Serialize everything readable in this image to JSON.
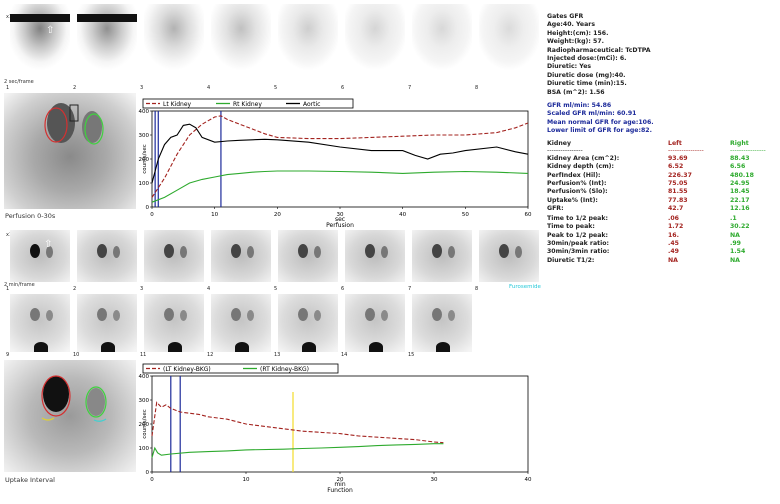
{
  "top_strip": {
    "scale_label": "x1.50",
    "frame_label": "2 sec/frame",
    "frames": [
      "1",
      "2",
      "3",
      "4",
      "5",
      "6",
      "7",
      "8"
    ]
  },
  "patient_info": [
    "Gates GFR",
    "Age:40. Years",
    "Height:(cm): 156.",
    "Weight:(kg): 57.",
    "Radiopharmaceutical: TcDTPA",
    "Injected dose:(mCi): 6.",
    "Diuretic: Yes",
    "Diuretic dose (mg):40.",
    "Diuretic time (min):15.",
    "BSA (m^2): 1.56"
  ],
  "gfr_summary": [
    "GFR ml/min: 54.86",
    "Scaled GFR ml/min: 60.91",
    "Mean normal GFR for age:106.",
    "Lower limit of GFR for age:82."
  ],
  "perfusion_panel": {
    "caption": "Perfusion 0-30s"
  },
  "mid_strip": {
    "scale_label": "x1.50",
    "frame_label": "2 min/frame",
    "frames_row1": [
      "1",
      "2",
      "3",
      "4",
      "5",
      "6",
      "7",
      "8"
    ],
    "frames_row2": [
      "9",
      "10",
      "11",
      "12",
      "13",
      "14",
      "15"
    ],
    "tag": "Furosemide"
  },
  "uptake_panel": {
    "caption": "Uptake Interval"
  },
  "kidney_table": {
    "header": {
      "label": "Kidney",
      "left": "Left",
      "right": "Right"
    },
    "dashes": "----------------",
    "rows": [
      {
        "label": "Kidney Area (cm^2):",
        "left": "93.69",
        "right": "88.43"
      },
      {
        "label": "Kidney depth (cm):",
        "left": "6.52",
        "right": "6.56"
      },
      {
        "label": "PerfIndex (Hil):",
        "left": "226.37",
        "right": "480.18"
      },
      {
        "label": "Perfusion% (Int):",
        "left": "75.05",
        "right": "24.95"
      },
      {
        "label": "Perfusion% (Slo):",
        "left": "81.55",
        "right": "18.45"
      },
      {
        "label": "Uptake% (Int):",
        "left": "77.83",
        "right": "22.17"
      },
      {
        "label": "GFR:",
        "left": "42.7",
        "right": "12.16"
      }
    ],
    "rows2": [
      {
        "label": "Time to 1/2 peak:",
        "left": ".06",
        "right": ".1"
      },
      {
        "label": "Time to peak:",
        "left": "1.72",
        "right": "30.22"
      },
      {
        "label": "Peak to 1/2 peak:",
        "left": "16.",
        "right": "NA"
      },
      {
        "label": "30min/peak ratio:",
        "left": ".45",
        "right": ".99"
      },
      {
        "label": "30min/3min ratio:",
        "left": ".49",
        "right": "1.54"
      },
      {
        "label": "Diuretic T1/2:",
        "left": "NA",
        "right": "NA"
      }
    ]
  },
  "colors": {
    "left": "#a3231f",
    "right": "#2eaa2e",
    "aortic": "#000000",
    "marker": "#1c2a9a",
    "diuretic": "#f2dd2a"
  },
  "chart_data": [
    {
      "type": "line",
      "legend": [
        "Lt Kidney",
        "Rt Kidney",
        "Aortic"
      ],
      "xlabel": "sec",
      "subtitle": "Perfusion",
      "ylabel": "counts/sec",
      "xlim": [
        0,
        60
      ],
      "ylim": [
        0,
        400
      ],
      "xticks": [
        "0",
        "10",
        "20",
        "30",
        "40",
        "50",
        "60"
      ],
      "yticks": [
        "0",
        "100",
        "200",
        "300",
        "400"
      ],
      "markers": [
        0.5,
        1,
        11
      ],
      "series": [
        {
          "name": "Lt Kidney",
          "x": [
            0,
            2,
            4,
            6,
            8,
            10,
            11,
            12,
            14,
            16,
            18,
            20,
            25,
            30,
            35,
            40,
            45,
            50,
            55,
            58,
            60
          ],
          "y": [
            40,
            120,
            220,
            300,
            345,
            375,
            380,
            365,
            345,
            325,
            305,
            290,
            285,
            285,
            290,
            295,
            300,
            300,
            310,
            330,
            350
          ]
        },
        {
          "name": "Rt Kidney",
          "x": [
            0,
            2,
            4,
            6,
            8,
            10,
            12,
            14,
            16,
            18,
            20,
            25,
            30,
            35,
            40,
            45,
            50,
            55,
            60
          ],
          "y": [
            20,
            40,
            70,
            100,
            115,
            125,
            135,
            140,
            145,
            148,
            150,
            150,
            148,
            145,
            140,
            145,
            148,
            145,
            140
          ]
        },
        {
          "name": "Aortic",
          "x": [
            0,
            1,
            2,
            3,
            4,
            5,
            6,
            7,
            8,
            10,
            12,
            14,
            16,
            18,
            20,
            25,
            30,
            35,
            40,
            42,
            44,
            46,
            48,
            50,
            55,
            58,
            60
          ],
          "y": [
            100,
            200,
            260,
            290,
            300,
            340,
            345,
            330,
            290,
            270,
            275,
            278,
            280,
            282,
            280,
            270,
            250,
            235,
            235,
            215,
            200,
            220,
            225,
            235,
            250,
            230,
            220
          ]
        }
      ]
    },
    {
      "type": "line",
      "legend": [
        "(LT Kidney-BKG)",
        "(RT Kidney-BKG)"
      ],
      "xlabel": "min",
      "subtitle": "Function",
      "ylabel": "counts/sec",
      "xlim": [
        0,
        40
      ],
      "ylim": [
        0,
        400
      ],
      "xticks": [
        "0",
        "10",
        "20",
        "30",
        "40"
      ],
      "yticks": [
        "0",
        "100",
        "200",
        "300",
        "400"
      ],
      "markers": [
        2,
        3
      ],
      "diuretic_marker": 15,
      "series": [
        {
          "name": "(LT Kidney-BKG)",
          "x": [
            0,
            0.5,
            1,
            1.5,
            2,
            3,
            4,
            5,
            6,
            8,
            10,
            12,
            14,
            16,
            18,
            20,
            22,
            24,
            26,
            28,
            30,
            31
          ],
          "y": [
            150,
            290,
            270,
            280,
            265,
            250,
            245,
            240,
            230,
            220,
            200,
            190,
            180,
            170,
            165,
            160,
            150,
            145,
            140,
            135,
            125,
            122
          ]
        },
        {
          "name": "(RT Kidney-BKG)",
          "x": [
            0,
            0.3,
            0.6,
            1,
            2,
            4,
            6,
            8,
            10,
            14,
            16,
            18,
            20,
            22,
            24,
            26,
            28,
            30,
            31
          ],
          "y": [
            60,
            100,
            80,
            70,
            75,
            82,
            85,
            88,
            92,
            95,
            98,
            100,
            103,
            106,
            110,
            113,
            115,
            118,
            118
          ]
        }
      ]
    }
  ]
}
